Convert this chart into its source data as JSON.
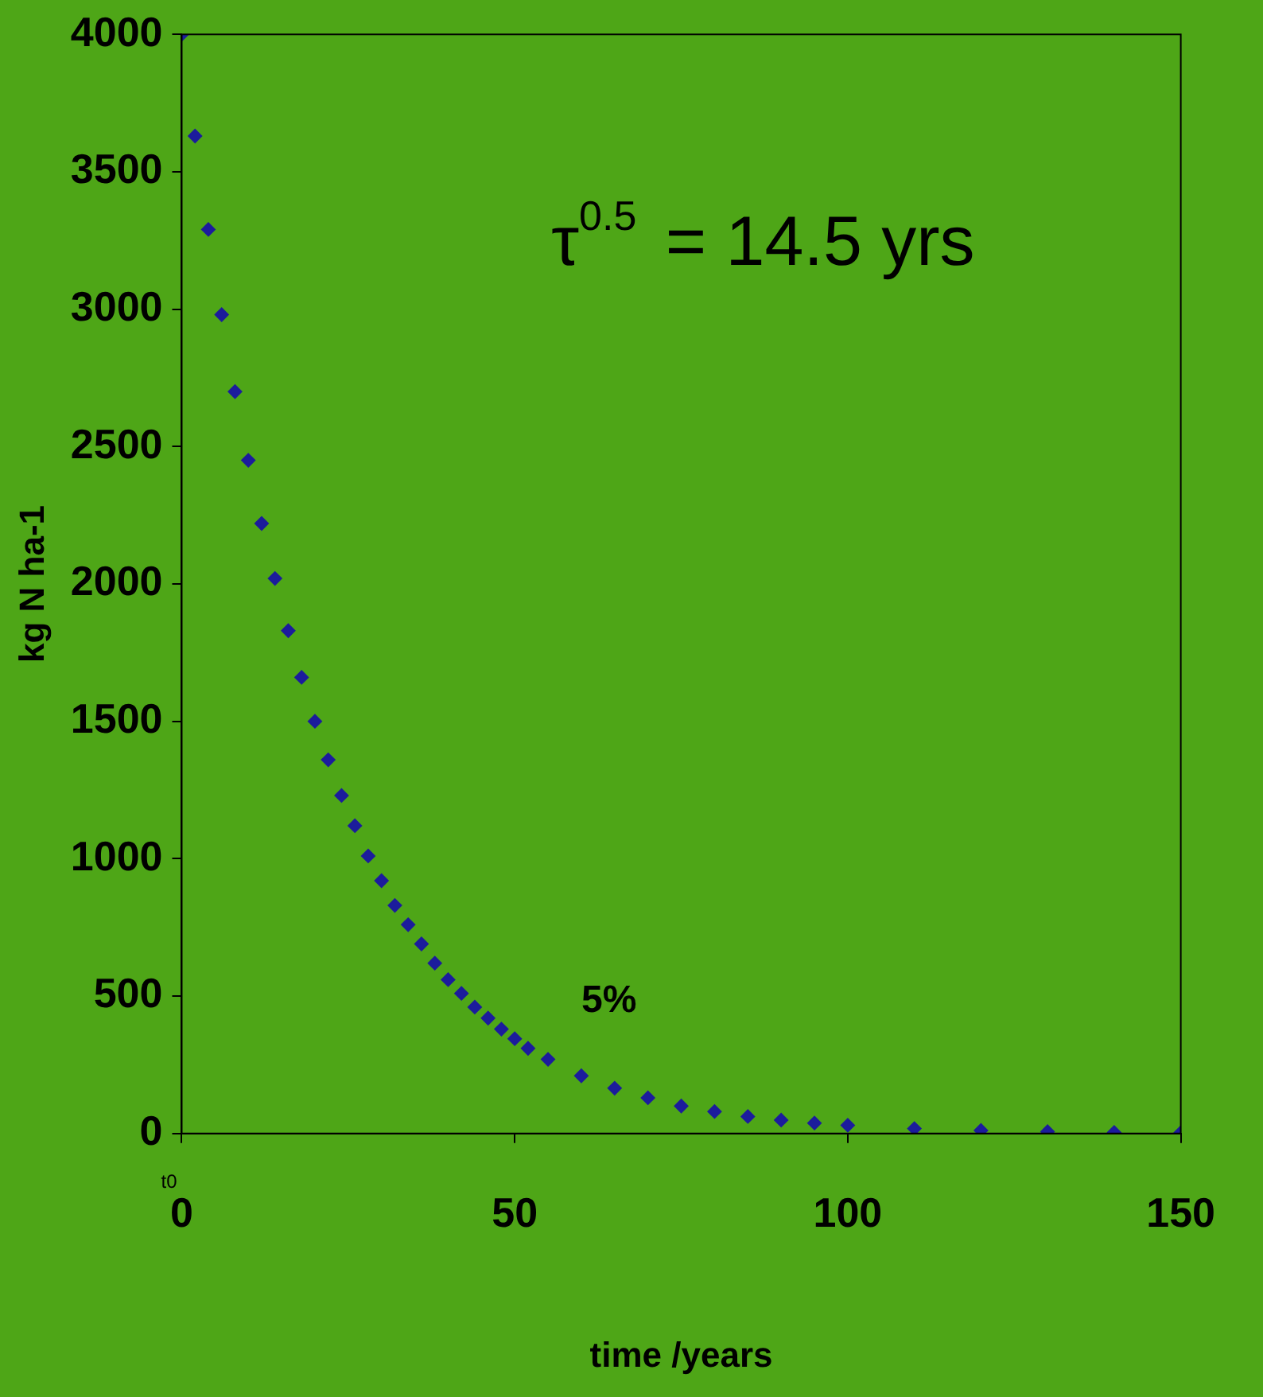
{
  "chart_data": {
    "type": "scatter",
    "xlabel": "time /years",
    "ylabel": "kg N ha-1",
    "annotations": [
      "τ$^{0.5}$ = 14.5 yrs",
      "t0",
      "5%"
    ],
    "x": [
      0,
      2,
      4,
      6,
      8,
      10,
      12,
      14,
      16,
      18,
      20,
      22,
      24,
      26,
      28,
      30,
      32,
      34,
      36,
      38,
      40,
      42,
      44,
      46,
      48,
      50,
      52,
      55,
      60,
      65,
      70,
      75,
      80,
      85,
      90,
      95,
      100,
      110,
      120,
      130,
      140,
      150
    ],
    "series": [
      {
        "color": "#1c1c9c",
        "values": [
          4000,
          3630,
          3290,
          2980,
          2700,
          2450,
          2220,
          2020,
          1830,
          1660,
          1500,
          1360,
          1230,
          1120,
          1010,
          920,
          830,
          760,
          690,
          620,
          560,
          510,
          460,
          420,
          380,
          345,
          310,
          270,
          210,
          165,
          130,
          100,
          80,
          62,
          49,
          38,
          30,
          18,
          11,
          7,
          4,
          3
        ]
      }
    ],
    "xlim": [
      0,
      150
    ],
    "xticks": [
      0,
      50,
      100,
      150
    ],
    "ylim": [
      0,
      4000
    ],
    "yticks": [
      0,
      500,
      1000,
      1500,
      2000,
      2500,
      3000,
      3500,
      4000
    ],
    "grid": false,
    "legend": false,
    "marker": "diamond"
  }
}
